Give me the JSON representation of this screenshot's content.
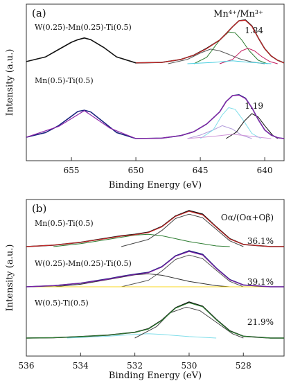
{
  "chart_data": [
    {
      "type": "line",
      "panel_label": "(a)",
      "xlabel": "Binding Energy (eV)",
      "ylabel": "Intensity (a.u.)",
      "xlim": [
        658.5,
        638.5
      ],
      "reversed_x": true,
      "xticks": [
        "655",
        "650",
        "645",
        "640"
      ],
      "xtick_values": [
        655,
        650,
        645,
        640
      ],
      "ratio_label": "Mn⁴⁺/Mn³⁺",
      "samples": [
        {
          "name": "W(0.25)-Mn(0.25)-Ti(0.5)",
          "ratio": "1.84",
          "raw": {
            "color": "#111111",
            "x": [
              658.5,
              657,
              656,
              655,
              654.5,
              654,
              653.5,
              652.5,
              651.5,
              650,
              648,
              646.5,
              645.5,
              644.5,
              643.5,
              643,
              642.5,
              642,
              641.5,
              641,
              640.5,
              640,
              639.5,
              639,
              638.5
            ],
            "y": [
              0.05,
              0.16,
              0.33,
              0.5,
              0.56,
              0.6,
              0.56,
              0.38,
              0.16,
              0.02,
              0.03,
              0.1,
              0.2,
              0.36,
              0.55,
              0.7,
              0.86,
              1.0,
              1.02,
              0.88,
              0.6,
              0.35,
              0.18,
              0.08,
              0.02
            ]
          },
          "fit": {
            "color": "#c62828",
            "x": [
              650,
              648,
              646.5,
              645.5,
              644.5,
              643.5,
              643,
              642.5,
              642,
              641.5,
              641,
              640.5,
              640,
              639.5,
              639,
              638.5
            ],
            "y": [
              0.02,
              0.03,
              0.1,
              0.2,
              0.35,
              0.55,
              0.7,
              0.86,
              1.0,
              1.01,
              0.87,
              0.6,
              0.35,
              0.18,
              0.08,
              0.02
            ]
          },
          "components": [
            {
              "color": "#555555",
              "x": [
                647.5,
                646,
                645,
                644.2,
                643.5,
                642.8,
                642,
                641,
                640
              ],
              "y": [
                0.0,
                0.1,
                0.25,
                0.34,
                0.3,
                0.22,
                0.12,
                0.04,
                0.0
              ]
            },
            {
              "color": "#2e7d32",
              "x": [
                645.5,
                644.5,
                643.5,
                642.8,
                642.3,
                641.8,
                641.2,
                640.5,
                639.8
              ],
              "y": [
                0.0,
                0.15,
                0.55,
                0.74,
                0.72,
                0.56,
                0.3,
                0.08,
                0.0
              ]
            },
            {
              "color": "#c2185b",
              "x": [
                643.5,
                642.5,
                641.8,
                641.3,
                640.8,
                640.2,
                639.6,
                639
              ],
              "y": [
                0.0,
                0.1,
                0.3,
                0.36,
                0.3,
                0.16,
                0.05,
                0.0
              ]
            },
            {
              "color": "#4dd0e1",
              "x": [
                646,
                644,
                642.5,
                641.5,
                640.5,
                639.5
              ],
              "y": [
                0.0,
                0.03,
                0.07,
                0.04,
                0.02,
                0.0
              ]
            }
          ]
        },
        {
          "name": "Mn(0.5)-Ti(0.5)",
          "ratio": "1.19",
          "raw": {
            "color": "#1a237e",
            "x": [
              658.5,
              657,
              656,
              655,
              654.5,
              654,
              653.5,
              652.5,
              651.5,
              650,
              648,
              646.5,
              645.5,
              644.5,
              643.5,
              643,
              642.5,
              642,
              641.5,
              641,
              640.5,
              640,
              639.5,
              639,
              638.5
            ],
            "y": [
              0.03,
              0.14,
              0.3,
              0.52,
              0.63,
              0.66,
              0.62,
              0.38,
              0.14,
              0.0,
              0.01,
              0.07,
              0.16,
              0.34,
              0.62,
              0.86,
              1.0,
              1.02,
              0.94,
              0.72,
              0.44,
              0.2,
              0.08,
              0.02,
              0.0
            ]
          },
          "fit": {
            "color": "#8e24aa",
            "x": [
              658.5,
              656,
              654,
              652,
              650,
              648,
              646.5,
              645.5,
              644.5,
              643.5,
              643,
              642.5,
              642,
              641.5,
              641,
              640.5,
              640,
              639.5,
              639,
              638.5
            ],
            "y": [
              0.03,
              0.28,
              0.65,
              0.24,
              0.0,
              0.01,
              0.07,
              0.16,
              0.34,
              0.62,
              0.86,
              1.0,
              1.01,
              0.93,
              0.72,
              0.44,
              0.2,
              0.08,
              0.02,
              0.0
            ]
          },
          "components": [
            {
              "color": "#b39ddb",
              "x": [
                646,
                645,
                644,
                643.3,
                642.5,
                641.8,
                641
              ],
              "y": [
                0.0,
                0.08,
                0.2,
                0.3,
                0.22,
                0.08,
                0.0
              ]
            },
            {
              "color": "#80deea",
              "x": [
                645,
                644,
                643.3,
                642.8,
                642.3,
                641.7,
                641,
                640.3
              ],
              "y": [
                0.0,
                0.2,
                0.55,
                0.72,
                0.68,
                0.44,
                0.12,
                0.0
              ]
            },
            {
              "color": "#111111",
              "x": [
                643,
                642.2,
                641.6,
                641,
                640.5,
                640,
                639.4,
                639
              ],
              "y": [
                0.0,
                0.15,
                0.4,
                0.58,
                0.5,
                0.3,
                0.08,
                0.0
              ]
            },
            {
              "color": "#ce93d8",
              "x": [
                646,
                644,
                642.5,
                641,
                639.5
              ],
              "y": [
                0.0,
                0.05,
                0.1,
                0.05,
                0.0
              ]
            }
          ]
        }
      ]
    },
    {
      "type": "line",
      "panel_label": "(b)",
      "xlabel": "Binding Energy (eV)",
      "ylabel": "Intensity (a.u.)",
      "xlim": [
        536,
        526.5
      ],
      "reversed_x": true,
      "xticks": [
        "536",
        "534",
        "532",
        "530",
        "528"
      ],
      "xtick_values": [
        536,
        534,
        532,
        530,
        528
      ],
      "ratio_label": "Oα/(Oα+Oβ)",
      "samples": [
        {
          "name": "Mn(0.5)-Ti(0.5)",
          "ratio": "36.1%",
          "raw": {
            "color": "#111111",
            "x": [
              536,
              535,
              534,
              533,
              532.5,
              532,
              531.5,
              531,
              530.5,
              530,
              529.5,
              529,
              528.5,
              528,
              527,
              526.5
            ],
            "y": [
              0.0,
              0.04,
              0.12,
              0.24,
              0.3,
              0.34,
              0.4,
              0.56,
              0.85,
              1.0,
              0.9,
              0.55,
              0.22,
              0.06,
              0.0,
              0.0
            ]
          },
          "fit": {
            "color": "#c62828",
            "x": [
              536,
              535,
              534,
              533,
              532.5,
              532,
              531.5,
              531,
              530.5,
              530,
              529.5,
              529,
              528.5,
              528,
              527,
              526.5
            ],
            "y": [
              0.0,
              0.04,
              0.12,
              0.23,
              0.29,
              0.33,
              0.39,
              0.55,
              0.84,
              0.98,
              0.88,
              0.54,
              0.21,
              0.06,
              0.0,
              0.0
            ]
          },
          "components": [
            {
              "color": "#2e7d32",
              "x": [
                535,
                534,
                533,
                532,
                531.5,
                531,
                530,
                529,
                528.5
              ],
              "y": [
                0.0,
                0.08,
                0.2,
                0.32,
                0.34,
                0.3,
                0.14,
                0.02,
                0.0
              ]
            },
            {
              "color": "#444444",
              "x": [
                532.5,
                531.5,
                531,
                530.5,
                530,
                529.5,
                529,
                528.5,
                528
              ],
              "y": [
                0.0,
                0.2,
                0.45,
                0.78,
                0.9,
                0.8,
                0.48,
                0.16,
                0.0
              ]
            }
          ]
        },
        {
          "name": "W(0.25)-Mn(0.25)-Ti(0.5)",
          "ratio": "39.1%",
          "raw": {
            "color": "#1a237e",
            "x": [
              536,
              535,
              534,
              533,
              532.5,
              532,
              531.5,
              531,
              530.5,
              530,
              529.5,
              529,
              528.5,
              528,
              527,
              526.5
            ],
            "y": [
              0.0,
              0.03,
              0.1,
              0.22,
              0.29,
              0.35,
              0.4,
              0.56,
              0.86,
              1.0,
              0.9,
              0.52,
              0.2,
              0.05,
              0.0,
              0.0
            ]
          },
          "fit": {
            "color": "#7b1fa2",
            "x": [
              536,
              535,
              534,
              533,
              532.5,
              532,
              531.5,
              531,
              530.5,
              530,
              529.5,
              529,
              528.5,
              528,
              527,
              526.5
            ],
            "y": [
              0.0,
              0.03,
              0.1,
              0.21,
              0.28,
              0.34,
              0.39,
              0.55,
              0.85,
              0.98,
              0.88,
              0.51,
              0.19,
              0.05,
              0.0,
              0.0
            ]
          },
          "components": [
            {
              "color": "#333333",
              "x": [
                535,
                534,
                533,
                532,
                531.5,
                531,
                530,
                529,
                528.5
              ],
              "y": [
                0.0,
                0.07,
                0.2,
                0.33,
                0.36,
                0.32,
                0.15,
                0.03,
                0.0
              ]
            },
            {
              "color": "#555555",
              "x": [
                532.5,
                531.5,
                531,
                530.5,
                530,
                529.5,
                529,
                528.5,
                528
              ],
              "y": [
                0.0,
                0.18,
                0.44,
                0.76,
                0.88,
                0.78,
                0.46,
                0.15,
                0.0
              ]
            },
            {
              "color": "#f9d71c",
              "x": [
                536,
                533,
                530,
                527,
                526.5
              ],
              "y": [
                0.0,
                0.0,
                0.0,
                0.0,
                0.0
              ]
            }
          ]
        },
        {
          "name": "W(0.5)-Ti(0.5)",
          "ratio": "21.9%",
          "raw": {
            "color": "#111111",
            "x": [
              536,
              535,
              534,
              533,
              532,
              531.5,
              531,
              530.5,
              530,
              529.5,
              529,
              528.5,
              528,
              527,
              526.5
            ],
            "y": [
              0.0,
              0.01,
              0.04,
              0.08,
              0.16,
              0.26,
              0.5,
              0.84,
              1.0,
              0.88,
              0.52,
              0.2,
              0.05,
              0.0,
              0.0
            ]
          },
          "fit": {
            "color": "#2e7d32",
            "x": [
              536,
              535,
              534,
              533,
              532,
              531.5,
              531,
              530.5,
              530,
              529.5,
              529,
              528.5,
              528,
              527,
              526.5
            ],
            "y": [
              0.0,
              0.01,
              0.04,
              0.08,
              0.16,
              0.25,
              0.49,
              0.83,
              0.98,
              0.87,
              0.51,
              0.19,
              0.05,
              0.0,
              0.0
            ]
          },
          "components": [
            {
              "color": "#80deea",
              "x": [
                534.5,
                533,
                532,
                531.5,
                531,
                530,
                529
              ],
              "y": [
                0.0,
                0.05,
                0.1,
                0.12,
                0.1,
                0.04,
                0.0
              ]
            },
            {
              "color": "#444444",
              "x": [
                532,
                531.2,
                530.7,
                530.1,
                529.6,
                529,
                528.4,
                528
              ],
              "y": [
                0.0,
                0.32,
                0.7,
                0.86,
                0.76,
                0.44,
                0.12,
                0.0
              ]
            }
          ]
        }
      ]
    }
  ]
}
